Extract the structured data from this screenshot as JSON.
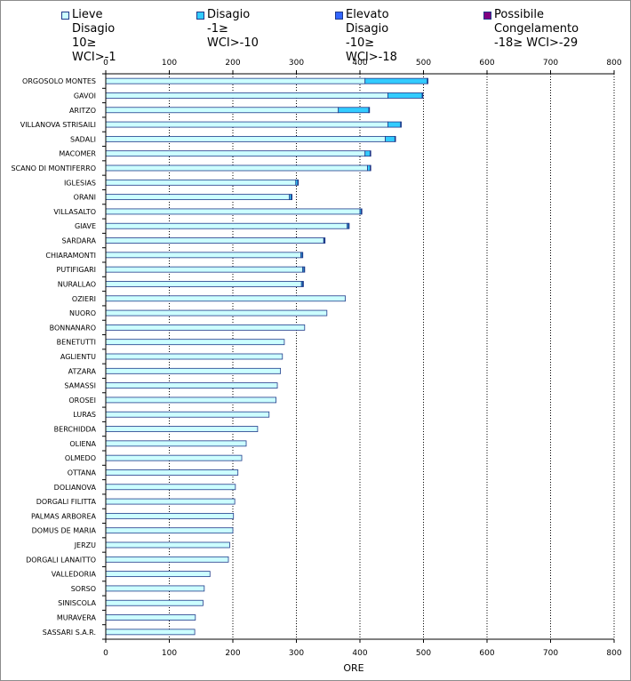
{
  "colors": {
    "lieve": "#ccffff",
    "disagio": "#33ccff",
    "elevato": "#3366ff",
    "congelamento": "#800080",
    "bar_edge": "#1f3a8a",
    "grid": "#000000",
    "plot_border": "#000000"
  },
  "legend": [
    {
      "key": "lieve",
      "label": "Lieve Disagio",
      "sub": "10≥ WCI>-1"
    },
    {
      "key": "disagio",
      "label": "Disagio",
      "sub": "-1≥ WCI>-10"
    },
    {
      "key": "elevato",
      "label": "Elevato Disagio",
      "sub": "-10≥ WCI>-18"
    },
    {
      "key": "congelamento",
      "label": "Possibile\nCongelamento",
      "sub": "-18≥ WCI>-29"
    }
  ],
  "chart_data": {
    "type": "bar",
    "orientation": "horizontal",
    "stacked": true,
    "xlabel": "ORE",
    "xlim": [
      0,
      800
    ],
    "xticks": [
      0,
      100,
      200,
      300,
      400,
      500,
      600,
      700,
      800
    ],
    "grid": "vertical dotted",
    "legend_position": "top",
    "categories": [
      "ORGOSOLO MONTES",
      "GAVOI",
      "ARITZO",
      "VILLANOVA STRISAILI",
      "SADALI",
      "MACOMER",
      "SCANO DI MONTIFERRO",
      "IGLESIAS",
      "ORANI",
      "VILLASALTO",
      "GIAVE",
      "SARDARA",
      "CHIARAMONTI",
      "PUTIFIGARI",
      "NURALLAO",
      "OZIERI",
      "NUORO",
      "BONNANARO",
      "BENETUTTI",
      "AGLIENTU",
      "ATZARA",
      "SAMASSI",
      "OROSEI",
      "LURAS",
      "BERCHIDDA",
      "OLIENA",
      "OLMEDO",
      "OTTANA",
      "DOLIANOVA",
      "DORGALI FILITTA",
      "PALMAS ARBOREA",
      "DOMUS DE MARIA",
      "JERZU",
      "DORGALI LANAITTO",
      "VALLEDORIA",
      "SORSO",
      "SINISCOLA",
      "MURAVERA",
      "SASSARI S.A.R."
    ],
    "series": [
      {
        "name": "Lieve Disagio",
        "key": "lieve",
        "values": [
          408,
          444,
          366,
          444,
          440,
          408,
          412,
          299,
          289,
          400,
          380,
          343,
          307,
          310,
          308,
          377,
          348,
          313,
          281,
          278,
          275,
          270,
          268,
          257,
          239,
          221,
          214,
          208,
          204,
          203,
          201,
          200,
          195,
          193,
          164,
          155,
          153,
          141,
          140
        ]
      },
      {
        "name": "Disagio",
        "key": "disagio",
        "values": [
          98,
          54,
          48,
          20,
          15,
          8,
          4,
          3,
          3,
          2,
          2,
          1,
          2,
          2,
          2,
          0,
          0,
          0,
          0,
          0,
          0,
          0,
          0,
          0,
          0,
          0,
          0,
          0,
          0,
          0,
          0,
          0,
          0,
          0,
          0,
          0,
          0,
          0,
          0
        ]
      },
      {
        "name": "Elevato Disagio",
        "key": "elevato",
        "values": [
          1,
          1,
          1,
          1,
          1,
          1,
          1,
          1,
          1,
          1,
          1,
          1,
          1,
          1,
          1,
          0,
          0,
          0,
          0,
          0,
          0,
          0,
          0,
          0,
          0,
          0,
          0,
          0,
          0,
          0,
          0,
          0,
          0,
          0,
          0,
          0,
          0,
          0,
          0
        ]
      },
      {
        "name": "Possibile Congelamento",
        "key": "congelamento",
        "values": [
          0,
          0,
          0,
          0,
          0,
          0,
          0,
          0,
          0,
          0,
          0,
          0,
          0,
          0,
          0,
          0,
          0,
          0,
          0,
          0,
          0,
          0,
          0,
          0,
          0,
          0,
          0,
          0,
          0,
          0,
          0,
          0,
          0,
          0,
          0,
          0,
          0,
          0,
          0
        ]
      }
    ]
  }
}
